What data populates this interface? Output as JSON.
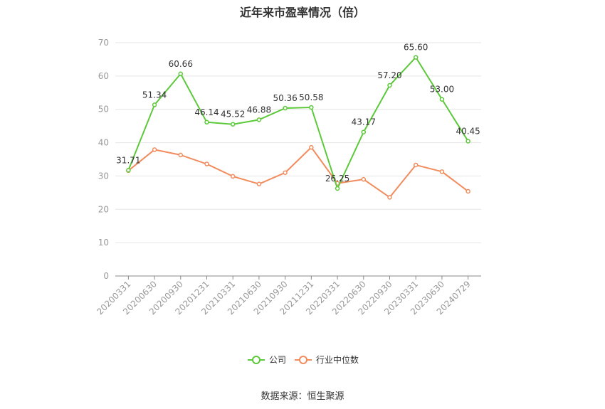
{
  "title": "近年来市盈率情况（倍）",
  "source": "数据来源：恒生聚源",
  "chart_data": {
    "type": "line",
    "title": "近年来市盈率情况（倍）",
    "categories": [
      "20200331",
      "20200630",
      "20200930",
      "20201231",
      "20210331",
      "20210630",
      "20210930",
      "20211231",
      "20220331",
      "20220630",
      "20220930",
      "20230331",
      "20230630",
      "20240729"
    ],
    "ylim": [
      0,
      70
    ],
    "yticks": [
      0,
      10,
      20,
      30,
      40,
      50,
      60,
      70
    ],
    "grid": true,
    "legend_position": "bottom",
    "series": [
      {
        "name": "公司",
        "color": "#5cc93a",
        "values": [
          31.71,
          51.34,
          60.66,
          46.14,
          45.52,
          46.88,
          50.36,
          50.58,
          26.25,
          43.17,
          57.2,
          65.6,
          53.0,
          40.45
        ],
        "labels": [
          "31.71",
          "51.34",
          "60.66",
          "46.14",
          "45.52",
          "46.88",
          "50.36",
          "50.58",
          "26.25",
          "43.17",
          "57.20",
          "65.60",
          "53.00",
          "40.45"
        ]
      },
      {
        "name": "行业中位数",
        "color": "#f28c5e",
        "values": [
          31.6,
          37.9,
          36.3,
          33.6,
          29.9,
          27.6,
          31.0,
          38.6,
          27.8,
          29.0,
          23.6,
          33.3,
          31.3,
          25.4
        ]
      }
    ]
  }
}
